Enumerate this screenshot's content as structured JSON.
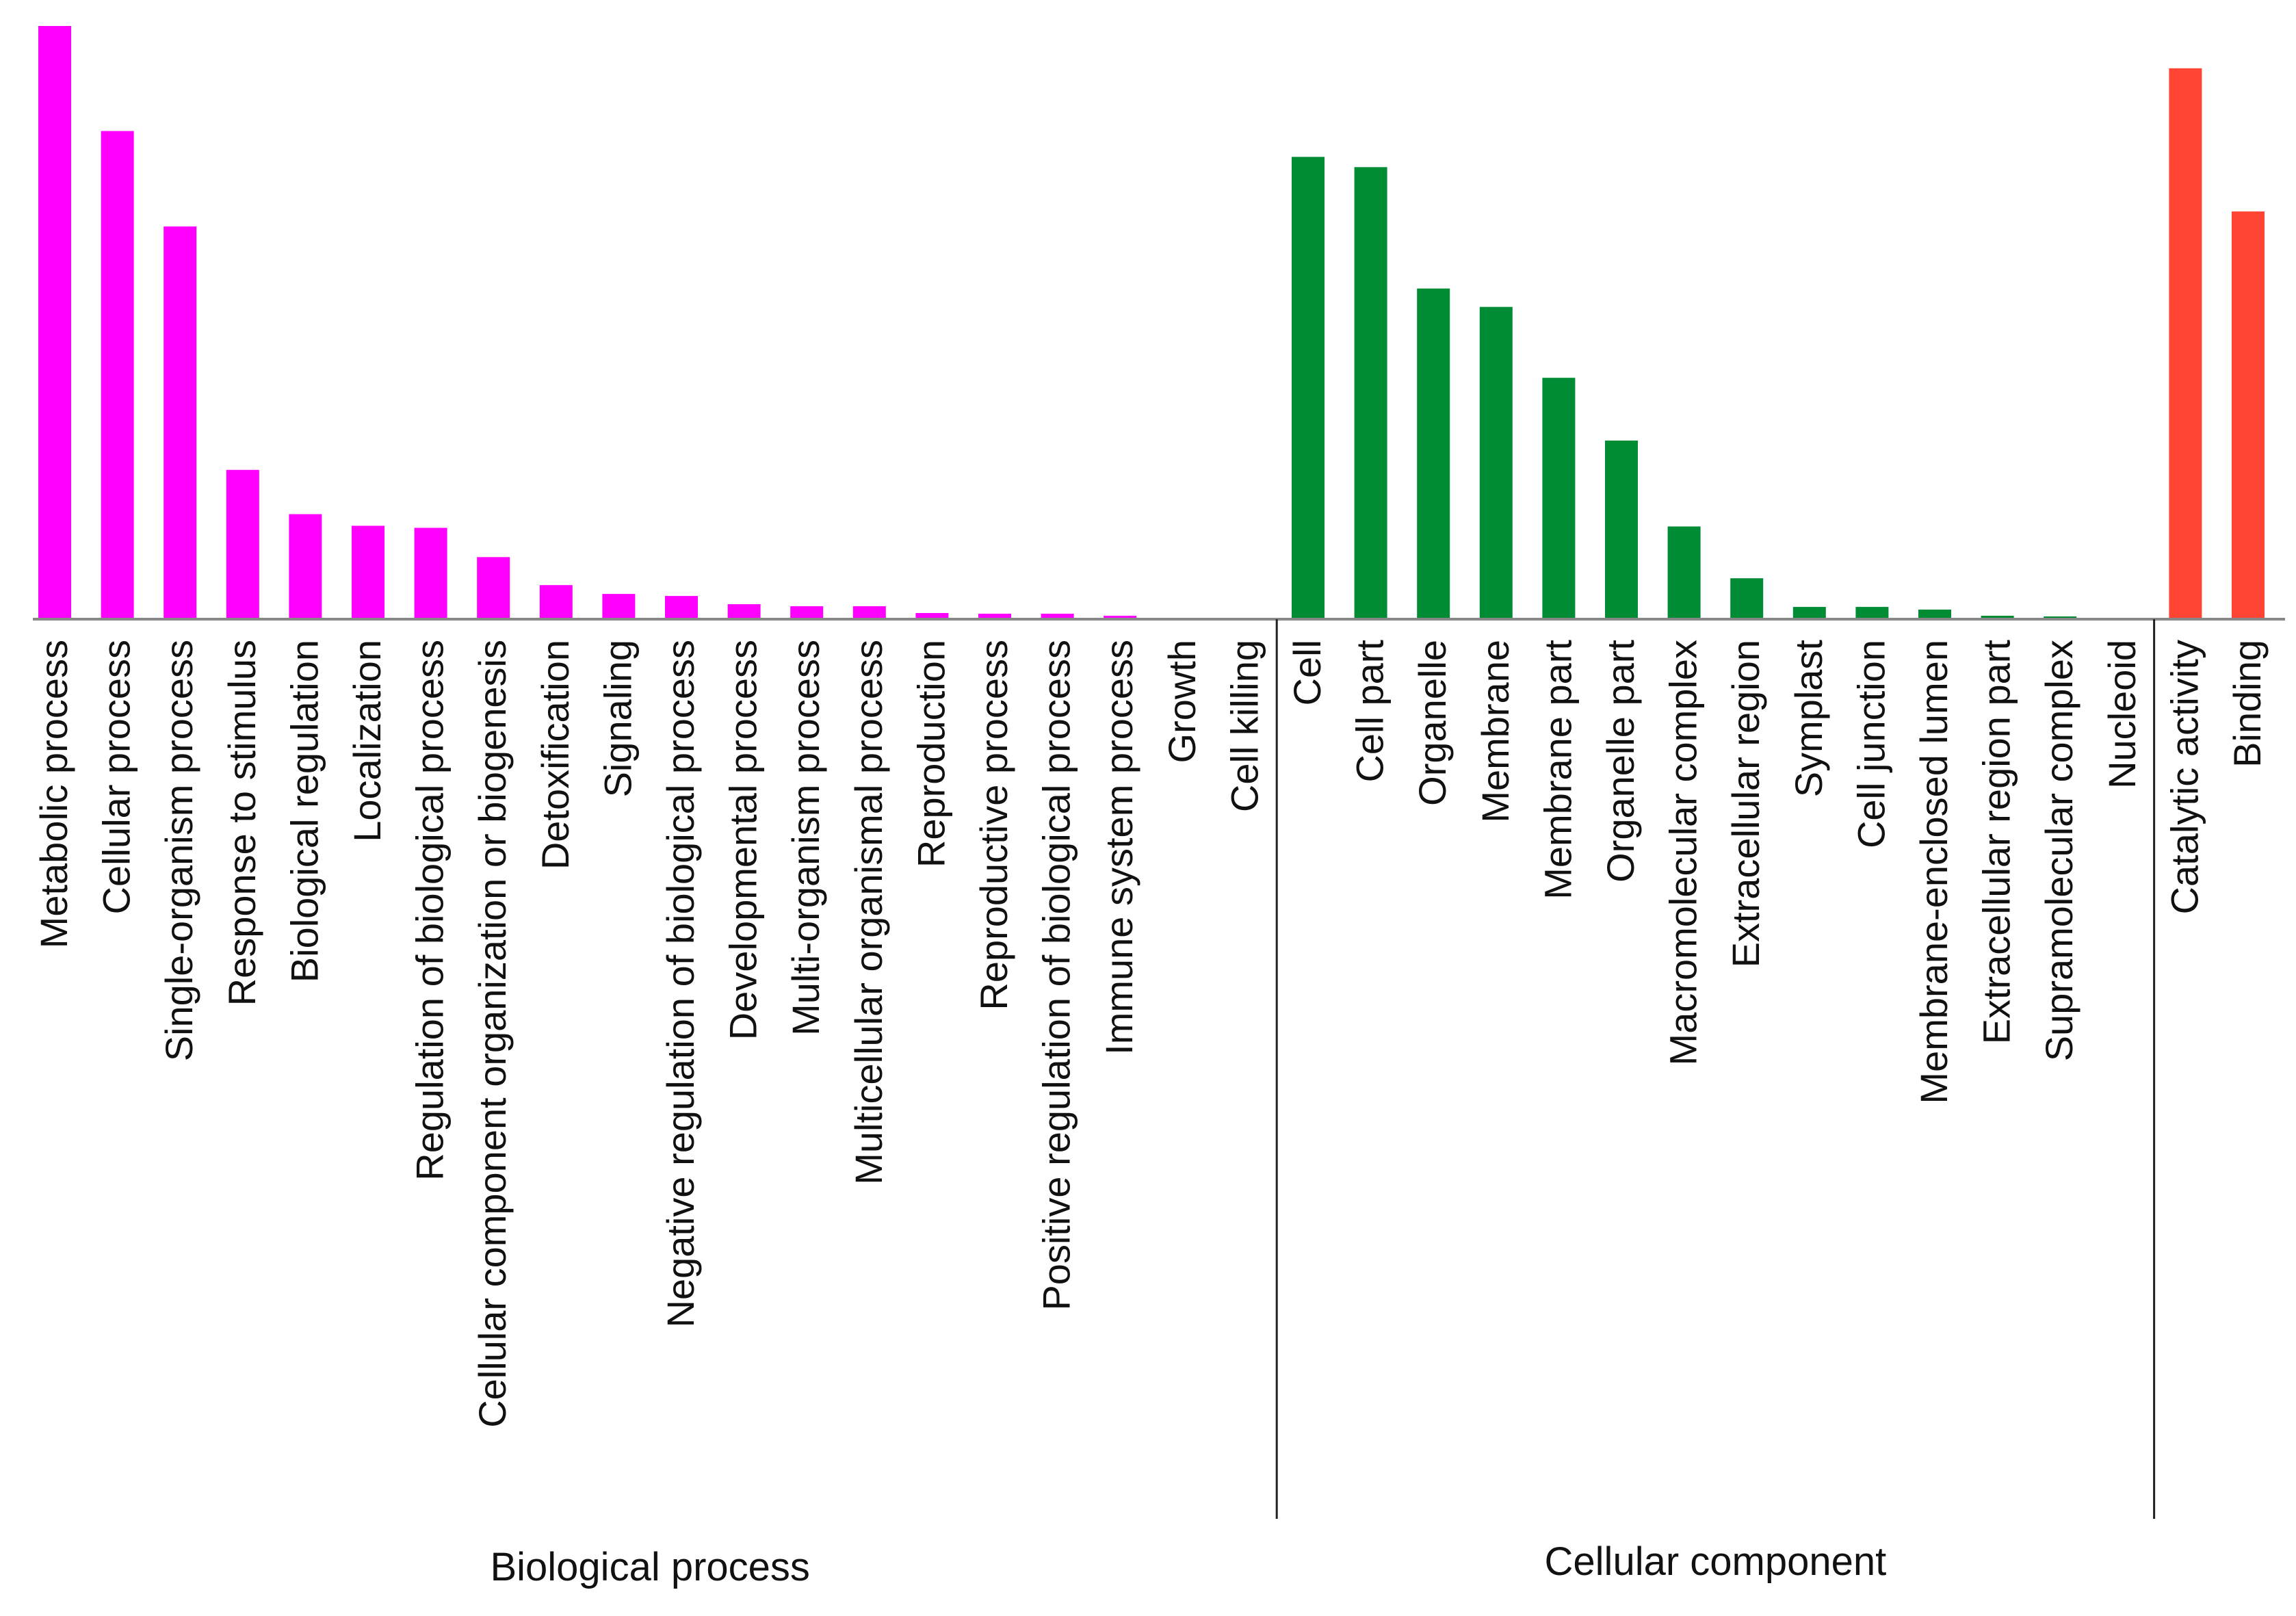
{
  "chart_data": {
    "type": "bar",
    "groups": [
      {
        "name": "Biological process",
        "color": "#ff00ff",
        "categories": [
          "Metabolic process",
          "Cellular process",
          "Single-organism process",
          "Response to stimulus",
          "Biological regulation",
          "Localization",
          "Regulation of biological process",
          "Cellular component organization or biogenesis",
          "Detoxification",
          "Signaling",
          "Negative regulation of biological process",
          "Developmental process",
          "Multi-organism process",
          "Multicellular organismal process",
          "Reproduction",
          "Reproductive process",
          "Positive regulation of biological process",
          "Immune system process",
          "Growth",
          "Cell killing"
        ],
        "values": [
          870,
          716,
          576,
          219,
          154,
          137,
          134,
          91,
          50,
          37,
          34,
          22,
          19,
          19,
          9,
          8,
          8,
          5,
          2,
          2
        ]
      },
      {
        "name": "Cellular component",
        "color": "#008c35",
        "categories": [
          "Cell",
          "Cell part",
          "Organelle",
          "Membrane",
          "Membrane part",
          "Organelle part",
          "Macromolecular complex",
          "Extracellular region",
          "Symplast",
          "Cell junction",
          "Membrane-enclosed lumen",
          "Extracellular region part",
          "Supramolecular complex",
          "Nucleoid"
        ],
        "values": [
          678,
          663,
          485,
          458,
          354,
          262,
          136,
          60,
          18,
          18,
          14,
          5,
          4,
          2
        ]
      },
      {
        "name": "",
        "color": "#ff4433",
        "categories": [
          "Catalytic activity",
          "Binding"
        ],
        "values": [
          808,
          598
        ]
      }
    ],
    "title": "",
    "xlabel": "",
    "ylabel": "",
    "ylim": [
      0,
      870
    ],
    "grid": false,
    "legend": "none"
  }
}
